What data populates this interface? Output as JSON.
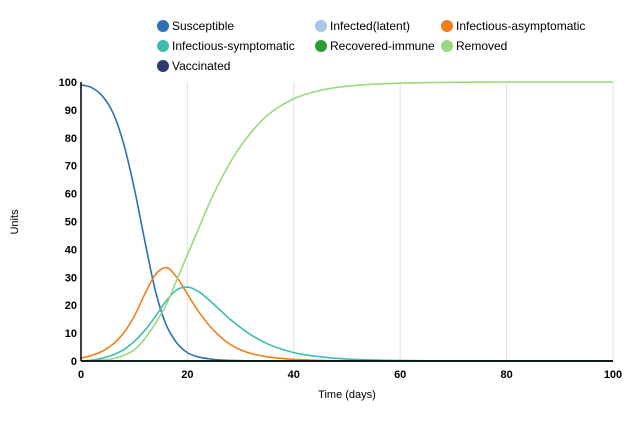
{
  "chart_data": {
    "type": "line",
    "xlabel": "Time (days)",
    "ylabel": "Units",
    "xlim": [
      0,
      100
    ],
    "ylim": [
      0,
      100
    ],
    "xticks": [
      0,
      20,
      40,
      60,
      80,
      100
    ],
    "yticks": [
      0,
      10,
      20,
      30,
      40,
      50,
      60,
      70,
      80,
      90,
      100
    ],
    "grid": "vertical",
    "legend_position": "top",
    "series": [
      {
        "name": "Susceptible",
        "color": "#2e6fb5",
        "x": [
          0,
          2,
          4,
          6,
          8,
          10,
          12,
          14,
          16,
          18,
          20,
          22,
          24,
          26,
          28,
          30,
          35,
          40,
          50,
          100
        ],
        "y": [
          99,
          98,
          95,
          89,
          78,
          62,
          43,
          25,
          13,
          6.5,
          3,
          1.5,
          0.8,
          0.4,
          0.2,
          0.1,
          0,
          0,
          0,
          0
        ]
      },
      {
        "name": "Infected(latent)",
        "color": "#a9c6e8",
        "x": [
          0,
          100
        ],
        "y": [
          0,
          0
        ]
      },
      {
        "name": "Infectious-asymptomatic",
        "color": "#f07f1a",
        "x": [
          0,
          2,
          4,
          6,
          8,
          10,
          12,
          14,
          16,
          18,
          20,
          22,
          24,
          26,
          28,
          30,
          32,
          35,
          40,
          45,
          50,
          60,
          100
        ],
        "y": [
          1,
          2,
          3.5,
          6,
          10,
          16,
          24,
          31,
          33.5,
          30,
          24,
          18,
          13,
          9,
          6,
          4,
          2.7,
          1.5,
          0.6,
          0.2,
          0,
          0,
          0
        ]
      },
      {
        "name": "Infectious-symptomatic",
        "color": "#3dbdb0",
        "x": [
          0,
          2,
          4,
          6,
          8,
          10,
          12,
          14,
          16,
          18,
          20,
          22,
          24,
          26,
          28,
          30,
          32,
          35,
          40,
          45,
          50,
          60,
          70,
          100
        ],
        "y": [
          0,
          0.3,
          1,
          2.2,
          4,
          7,
          11,
          16,
          21.5,
          25.5,
          26.5,
          25,
          22,
          18.5,
          15,
          12,
          9.3,
          6.2,
          3,
          1.5,
          0.7,
          0.2,
          0,
          0
        ]
      },
      {
        "name": "Recovered-immune",
        "color": "#2a9c33",
        "x": [
          0,
          100
        ],
        "y": [
          0,
          0
        ]
      },
      {
        "name": "Removed",
        "color": "#9ad97d",
        "x": [
          0,
          2,
          4,
          6,
          8,
          10,
          12,
          14,
          16,
          18,
          20,
          22,
          24,
          26,
          28,
          30,
          32,
          35,
          40,
          45,
          50,
          55,
          60,
          65,
          70,
          80,
          90,
          100
        ],
        "y": [
          0,
          0.1,
          0.3,
          0.8,
          2,
          4,
          8,
          13.5,
          20,
          29,
          38,
          47,
          56,
          64,
          71,
          77,
          82,
          88,
          94,
          97,
          98.5,
          99.2,
          99.6,
          99.8,
          99.9,
          100,
          100,
          100
        ]
      },
      {
        "name": "Vaccinated",
        "color": "#2e3a72",
        "x": [
          0,
          100
        ],
        "y": [
          0,
          0
        ]
      }
    ]
  }
}
